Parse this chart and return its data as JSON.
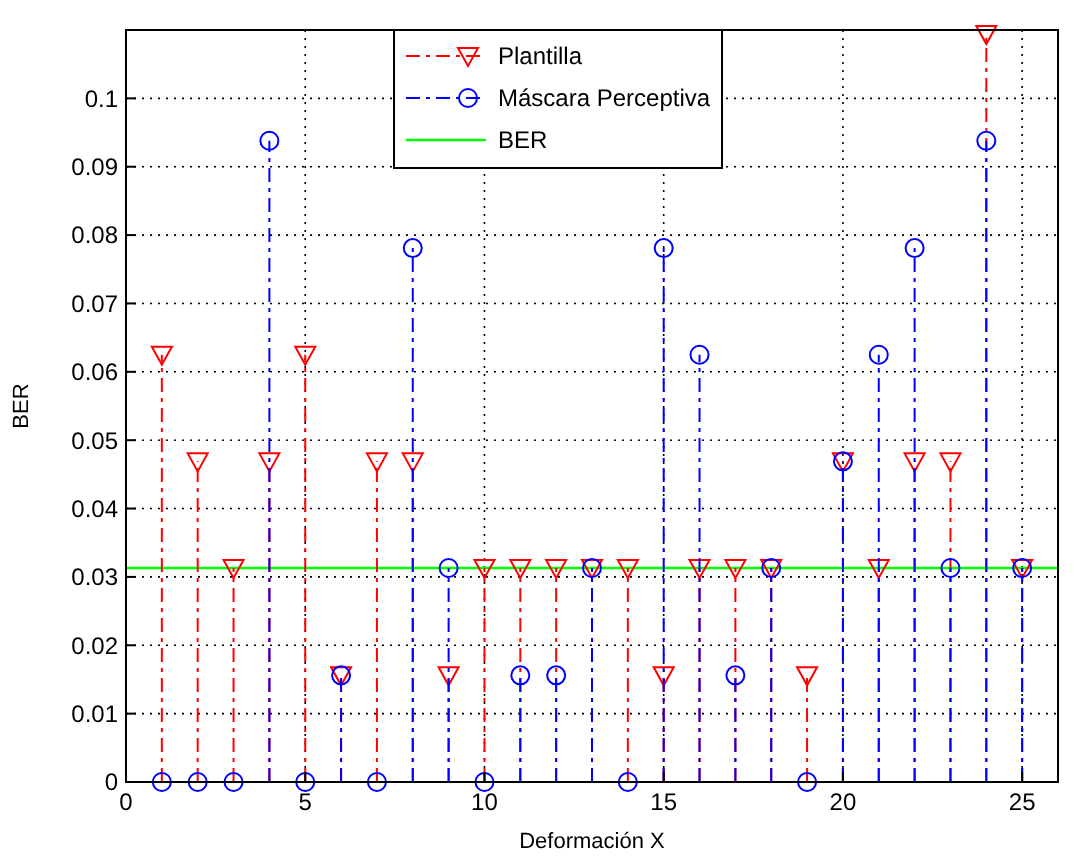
{
  "chart_data": {
    "type": "lollipop",
    "xlabel": "Deformación X",
    "ylabel": "BER",
    "x": [
      1,
      2,
      3,
      4,
      5,
      6,
      7,
      8,
      9,
      10,
      11,
      12,
      13,
      14,
      15,
      16,
      17,
      18,
      19,
      20,
      21,
      22,
      23,
      24,
      25
    ],
    "series": [
      {
        "name": "Plantilla",
        "color": "#ff0000",
        "marker": "triangle",
        "line_style": "dashed",
        "values": [
          0.0625,
          0.0469,
          0.0313,
          0.0469,
          0.0625,
          0.0156,
          0.0469,
          0.0469,
          0.0156,
          0.0313,
          0.0313,
          0.0313,
          0.0313,
          0.0313,
          0.0156,
          0.0313,
          0.0313,
          0.0313,
          0.0156,
          0.0469,
          0.0313,
          0.0469,
          0.0469,
          0.1094,
          0.0313
        ]
      },
      {
        "name": "Máscara Perceptiva",
        "color": "#0000ff",
        "marker": "circle",
        "line_style": "dashed",
        "values": [
          0,
          0,
          0,
          0.0938,
          0,
          0.0156,
          0,
          0.0781,
          0.0313,
          0,
          0.0156,
          0.0156,
          0.0313,
          0,
          0.0781,
          0.0625,
          0.0156,
          0.0313,
          0,
          0.0469,
          0.0625,
          0.0781,
          0.0313,
          0.0938,
          0.0313
        ]
      }
    ],
    "ref_lines": [
      {
        "axis": "y",
        "value": 0.0313,
        "label": "BER",
        "color": "#00ff00"
      }
    ],
    "xlim": [
      0,
      26
    ],
    "xticks": [
      0,
      5,
      10,
      15,
      20,
      25
    ],
    "ylim": [
      0,
      0.11
    ],
    "yticks": [
      0,
      0.01,
      0.02,
      0.03,
      0.04,
      0.05,
      0.06,
      0.07,
      0.08,
      0.09,
      0.1
    ],
    "grid": true,
    "legend": "top"
  }
}
